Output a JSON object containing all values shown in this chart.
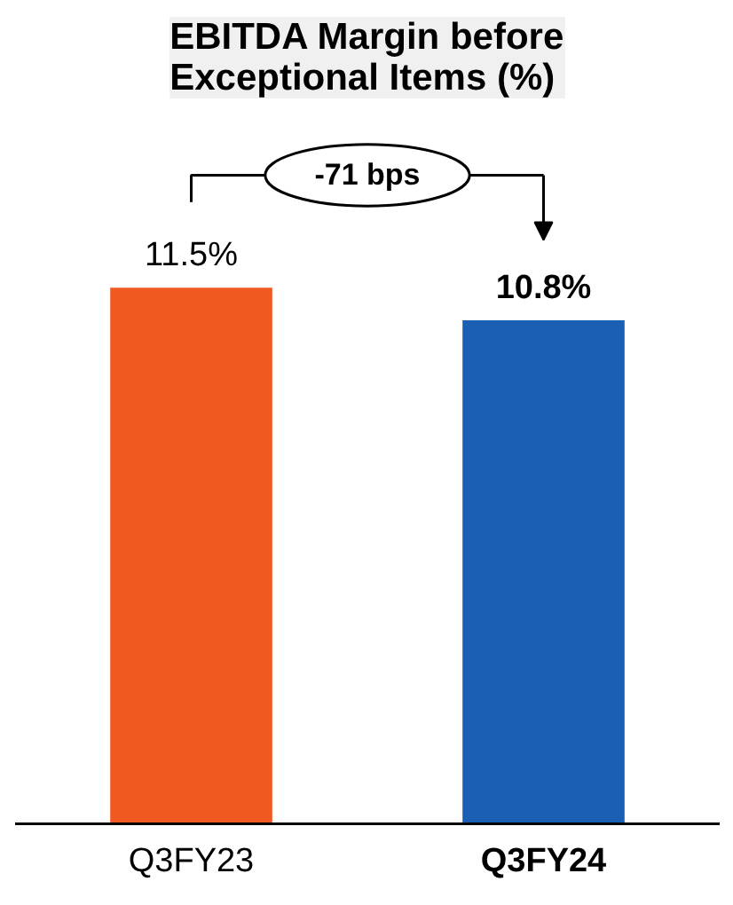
{
  "chart_data": {
    "type": "bar",
    "title": "EBITDA Margin before\nExceptional Items (%)",
    "categories": [
      "Q3FY23",
      "Q3FY24"
    ],
    "values": [
      11.5,
      10.8
    ],
    "colors": [
      "#f05a22",
      "#1a5fb4"
    ],
    "value_labels": [
      "11.5%",
      "10.8%"
    ],
    "annotations": [
      "-71 bps"
    ],
    "grid": false
  }
}
